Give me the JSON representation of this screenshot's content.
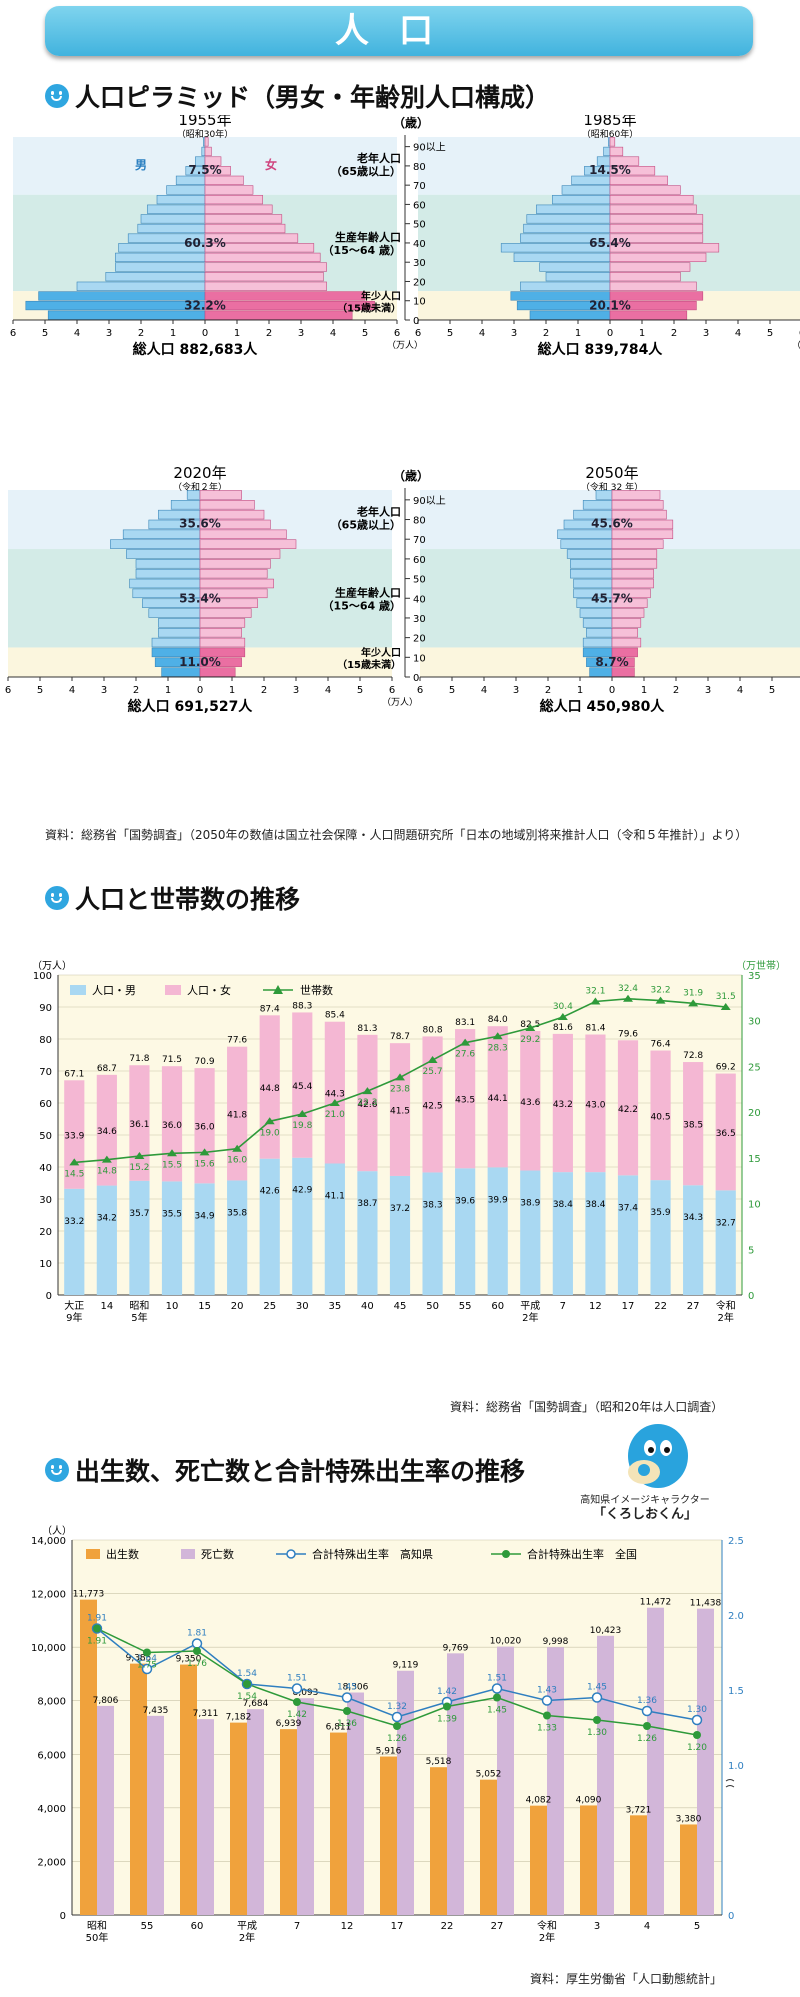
{
  "header": {
    "title": "人口"
  },
  "pyramid_section": {
    "heading": "人口ピラミッド（男女・年齢別人口構成）",
    "axis_unit": "（歳）",
    "x_unit": "（万人）",
    "age_ticks": [
      "0",
      "10",
      "20",
      "30",
      "40",
      "50",
      "60",
      "70",
      "80",
      "90以上"
    ],
    "x_ticks": [
      "6",
      "5",
      "4",
      "3",
      "2",
      "1",
      "0",
      "1",
      "2",
      "3",
      "4",
      "5",
      "6"
    ],
    "bands": {
      "elderly": "老年人口\n（65歳以上）",
      "working": "生産年齢人口\n（15〜64 歳）",
      "young": "年少人口\n（15歳未満）"
    },
    "male": "男",
    "female": "女",
    "source": "資料：総務省「国勢調査」（2050年の数値は国立社会保障・人口問題研究所「日本の地域別将来推計人口（令和５年推計）」より）"
  },
  "households_section": {
    "heading": "人口と世帯数の推移",
    "source": "資料：総務省「国勢調査」（昭和20年は人口調査）"
  },
  "births_section": {
    "heading": "出生数、死亡数と合計特殊出生率の推移",
    "character_label": "高知県イメージキャラクター",
    "character_name": "「くろしおくん」",
    "source": "資料：厚生労働省「人口動態統計」"
  },
  "colors": {
    "male_light": "#a9d8f2",
    "male_dark": "#4fb0e6",
    "female_light": "#f6c0d8",
    "female_dark": "#ea6fa2",
    "band_elderly": "#e6f2f9",
    "band_working": "#d3ebe7",
    "band_young": "#fbf6de",
    "households": "#2e9a3a",
    "births": "#f0a23c",
    "deaths": "#d2b6d9",
    "tfr_kochi": "#2f7fc0",
    "tfr_japan": "#2e9a3a"
  },
  "chart_data": [
    {
      "type": "bar",
      "subtype": "population-pyramid",
      "title": "1955年",
      "subtitle": "（昭和30年）",
      "total_label": "総人口 882,683人",
      "age_groups": [
        "0-4",
        "5-9",
        "10-14",
        "15-19",
        "20-24",
        "25-29",
        "30-34",
        "35-39",
        "40-44",
        "45-49",
        "50-54",
        "55-59",
        "60-64",
        "65-69",
        "70-74",
        "75-79",
        "80-84",
        "85-89",
        "90以上"
      ],
      "series": [
        {
          "name": "男",
          "values": [
            4.9,
            5.6,
            5.2,
            4.0,
            3.1,
            2.8,
            2.8,
            2.7,
            2.4,
            2.1,
            2.0,
            1.8,
            1.5,
            1.2,
            0.9,
            0.6,
            0.3,
            0.1,
            0.05
          ]
        },
        {
          "name": "女",
          "values": [
            4.6,
            5.3,
            5.0,
            3.8,
            3.7,
            3.8,
            3.6,
            3.4,
            2.9,
            2.5,
            2.4,
            2.1,
            1.8,
            1.5,
            1.2,
            0.8,
            0.5,
            0.2,
            0.1
          ]
        }
      ],
      "shares": {
        "elderly": "7.5%",
        "working": "60.3%",
        "young": "32.2%"
      },
      "xlim": [
        0,
        6
      ]
    },
    {
      "type": "bar",
      "subtype": "population-pyramid",
      "title": "1985年",
      "subtitle": "（昭和60年）",
      "total_label": "総人口 839,784人",
      "age_groups": [
        "0-4",
        "5-9",
        "10-14",
        "15-19",
        "20-24",
        "25-29",
        "30-34",
        "35-39",
        "40-44",
        "45-49",
        "50-54",
        "55-59",
        "60-64",
        "65-69",
        "70-74",
        "75-79",
        "80-84",
        "85-89",
        "90以上"
      ],
      "series": [
        {
          "name": "男",
          "values": [
            2.5,
            2.9,
            3.1,
            2.8,
            2.0,
            2.2,
            3.0,
            3.4,
            2.8,
            2.7,
            2.6,
            2.3,
            1.8,
            1.5,
            1.2,
            0.8,
            0.4,
            0.2,
            0.05
          ]
        },
        {
          "name": "女",
          "values": [
            2.4,
            2.7,
            2.9,
            2.7,
            2.2,
            2.5,
            3.0,
            3.4,
            2.9,
            2.9,
            2.9,
            2.7,
            2.6,
            2.2,
            1.8,
            1.4,
            0.9,
            0.4,
            0.15
          ]
        }
      ],
      "shares": {
        "elderly": "14.5%",
        "working": "65.4%",
        "young": "20.1%"
      },
      "xlim": [
        0,
        6
      ]
    },
    {
      "type": "bar",
      "subtype": "population-pyramid",
      "title": "2020年",
      "subtitle": "（令和２年）",
      "total_label": "総人口 691,527人",
      "age_groups": [
        "0-4",
        "5-9",
        "10-14",
        "15-19",
        "20-24",
        "25-29",
        "30-34",
        "35-39",
        "40-44",
        "45-49",
        "50-54",
        "55-59",
        "60-64",
        "65-69",
        "70-74",
        "75-79",
        "80-84",
        "85-89",
        "90以上"
      ],
      "series": [
        {
          "name": "男",
          "values": [
            1.2,
            1.4,
            1.5,
            1.5,
            1.3,
            1.3,
            1.6,
            1.8,
            2.1,
            2.2,
            2.0,
            2.0,
            2.3,
            2.8,
            2.4,
            1.6,
            1.3,
            0.9,
            0.4
          ]
        },
        {
          "name": "女",
          "values": [
            1.1,
            1.3,
            1.4,
            1.4,
            1.3,
            1.4,
            1.6,
            1.8,
            2.1,
            2.3,
            2.1,
            2.2,
            2.5,
            3.0,
            2.7,
            2.2,
            2.0,
            1.7,
            1.3
          ]
        }
      ],
      "shares": {
        "elderly": "35.6%",
        "working": "53.4%",
        "young": "11.0%"
      },
      "xlim": [
        0,
        6
      ]
    },
    {
      "type": "bar",
      "subtype": "population-pyramid",
      "title": "2050年",
      "subtitle": "（令和 32 年）",
      "total_label": "総人口 450,980人",
      "age_groups": [
        "0-4",
        "5-9",
        "10-14",
        "15-19",
        "20-24",
        "25-29",
        "30-34",
        "35-39",
        "40-44",
        "45-49",
        "50-54",
        "55-59",
        "60-64",
        "65-69",
        "70-74",
        "75-79",
        "80-84",
        "85-89",
        "90以上"
      ],
      "series": [
        {
          "name": "男",
          "values": [
            0.7,
            0.8,
            0.9,
            0.9,
            0.8,
            0.9,
            1.0,
            1.1,
            1.2,
            1.2,
            1.3,
            1.3,
            1.4,
            1.6,
            1.7,
            1.5,
            1.2,
            0.9,
            0.5
          ]
        },
        {
          "name": "女",
          "values": [
            0.7,
            0.7,
            0.8,
            0.9,
            0.8,
            0.9,
            1.0,
            1.1,
            1.2,
            1.3,
            1.3,
            1.4,
            1.4,
            1.6,
            1.9,
            1.9,
            1.7,
            1.6,
            1.5
          ]
        }
      ],
      "shares": {
        "elderly": "45.6%",
        "working": "45.7%",
        "young": "8.7%"
      },
      "xlim": [
        0,
        6
      ]
    },
    {
      "type": "bar",
      "subtype": "stacked-bar-with-line",
      "title": "人口と世帯数の推移",
      "categories": [
        "大正\n9年",
        "14",
        "昭和\n5年",
        "10",
        "15",
        "20",
        "25",
        "30",
        "35",
        "40",
        "45",
        "50",
        "55",
        "60",
        "平成\n2年",
        "7",
        "12",
        "17",
        "22",
        "27",
        "令和\n2年"
      ],
      "series": [
        {
          "name": "人口・男",
          "values": [
            33.2,
            34.2,
            35.7,
            35.5,
            34.9,
            35.8,
            42.6,
            42.9,
            41.1,
            38.7,
            37.2,
            38.3,
            39.6,
            39.9,
            38.9,
            38.4,
            38.4,
            37.4,
            35.9,
            34.3,
            32.7
          ]
        },
        {
          "name": "人口・女",
          "values": [
            33.9,
            34.6,
            36.1,
            36.0,
            36.0,
            41.8,
            44.8,
            45.4,
            44.3,
            42.6,
            41.5,
            42.5,
            43.5,
            44.1,
            43.6,
            43.2,
            43.0,
            42.2,
            40.5,
            38.5,
            36.5
          ]
        },
        {
          "name": "世帯数",
          "axis": "right",
          "values": [
            14.5,
            14.8,
            15.2,
            15.5,
            15.6,
            16.0,
            19.0,
            19.8,
            21.0,
            22.3,
            23.8,
            25.7,
            27.6,
            28.3,
            29.2,
            30.4,
            32.1,
            32.4,
            32.2,
            31.9,
            31.5
          ]
        }
      ],
      "totals": [
        67.1,
        68.7,
        71.8,
        71.5,
        70.9,
        77.6,
        87.4,
        88.3,
        85.4,
        81.3,
        78.7,
        80.8,
        83.1,
        84.0,
        82.5,
        81.6,
        81.4,
        79.6,
        76.4,
        72.8,
        69.2
      ],
      "ylabel": "（万人）",
      "y2label": "（万世帯）",
      "ylim": [
        0,
        100
      ],
      "y2lim": [
        0,
        35
      ],
      "yticks": [
        0,
        10,
        20,
        30,
        40,
        50,
        60,
        70,
        80,
        90,
        100
      ],
      "y2ticks": [
        0,
        5,
        10,
        15,
        20,
        25,
        30,
        35
      ],
      "grid": true,
      "legend": "top-left"
    },
    {
      "type": "bar",
      "subtype": "grouped-bar-with-lines",
      "title": "出生数、死亡数と合計特殊出生率の推移",
      "categories": [
        "昭和\n50年",
        "55",
        "60",
        "平成\n2年",
        "7",
        "12",
        "17",
        "22",
        "27",
        "令和\n2年",
        "3",
        "4",
        "5"
      ],
      "series": [
        {
          "name": "出生数",
          "values": [
            11773,
            9385,
            9350,
            7182,
            6939,
            6811,
            5916,
            5518,
            5052,
            4082,
            4090,
            3721,
            3380
          ]
        },
        {
          "name": "死亡数",
          "values": [
            7806,
            7435,
            7311,
            7684,
            8093,
            8306,
            9119,
            9769,
            10020,
            9998,
            10423,
            11472,
            11438
          ]
        },
        {
          "name": "合計特殊出生率　高知県",
          "axis": "right",
          "values": [
            1.91,
            1.64,
            1.81,
            1.54,
            1.51,
            1.45,
            1.32,
            1.42,
            1.51,
            1.43,
            1.45,
            1.36,
            1.3
          ]
        },
        {
          "name": "合計特殊出生率　全国",
          "axis": "right",
          "values": [
            1.91,
            1.75,
            1.76,
            1.54,
            1.42,
            1.36,
            1.26,
            1.39,
            1.45,
            1.33,
            1.3,
            1.26,
            1.2
          ]
        }
      ],
      "ylabel": "（人）",
      "ylim": [
        0,
        14000
      ],
      "y2lim": [
        0,
        2.5
      ],
      "yticks": [
        0,
        2000,
        4000,
        6000,
        8000,
        10000,
        12000,
        14000
      ],
      "y2ticks": [
        0,
        1.0,
        1.5,
        2.0,
        2.5
      ],
      "legend": "top",
      "grid": true
    }
  ]
}
